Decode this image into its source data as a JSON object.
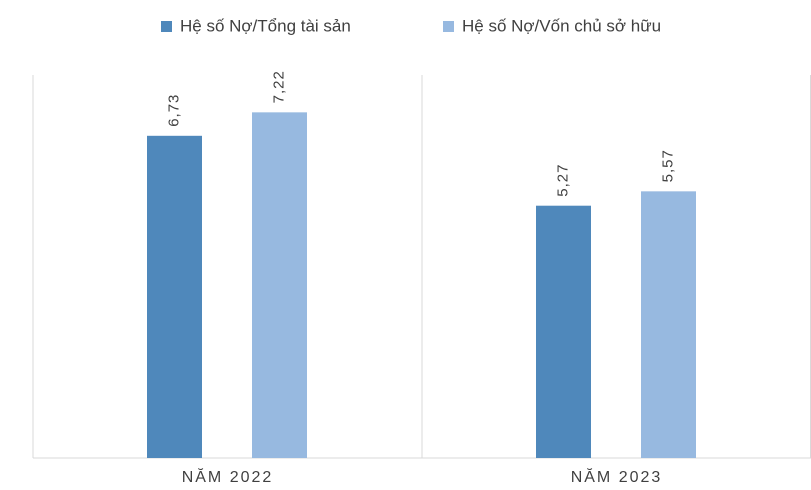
{
  "chart_data": {
    "type": "bar",
    "categories": [
      "NĂM 2022",
      "NĂM 2023"
    ],
    "series": [
      {
        "name": "Hệ số Nợ/Tổng tài sản",
        "color": "#4f88bb",
        "values": [
          6.73,
          5.27
        ],
        "value_labels": [
          "6,73",
          "5,27"
        ]
      },
      {
        "name": "Hệ số Nợ/Vốn chủ sở hữu",
        "color": "#97b9e0",
        "values": [
          7.22,
          5.57
        ],
        "value_labels": [
          "7,22",
          "5,57"
        ]
      }
    ],
    "ylim": [
      0,
      8
    ],
    "legend": "top"
  }
}
